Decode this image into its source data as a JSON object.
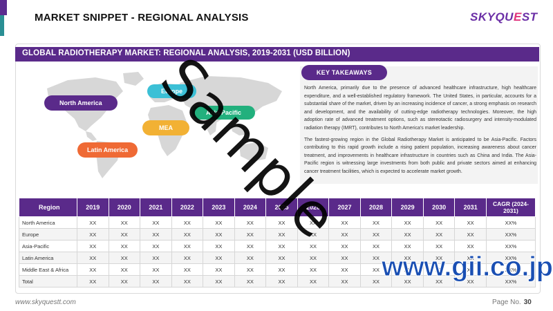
{
  "header": {
    "title": "MARKET SNIPPET - REGIONAL ANALYSIS",
    "logo_main": "SKYQU",
    "logo_accent": "E",
    "logo_end": "ST"
  },
  "section": {
    "banner": "GLOBAL RADIOTHERAPY MARKET: REGIONAL ANALYSIS, 2019-2031 (USD BILLION)"
  },
  "map": {
    "regions": [
      {
        "label": "North America",
        "color": "#5a2a8a"
      },
      {
        "label": "Europe",
        "color": "#3cc0d6"
      },
      {
        "label": "Asia-Pacific",
        "color": "#22b07d"
      },
      {
        "label": "MEA",
        "color": "#f2b134"
      },
      {
        "label": "Latin America",
        "color": "#ef6a35"
      }
    ]
  },
  "takeaways": {
    "title": "KEY TAKEAWAYS",
    "para1": "North America, primarily due to the presence of advanced healthcare infrastructure, high healthcare expenditure, and a well-established regulatory framework. The United States, in particular, accounts for a substantial share of the market, driven by an increasing incidence of cancer, a strong emphasis on research and development, and the availability of cutting-edge radiotherapy technologies. Moreover, the high adoption rate of advanced treatment options, such as stereotactic radiosurgery and intensity-modulated radiation therapy (IMRT), contributes to North America's market leadership.",
    "para2": "The fastest-growing region in the Global Radiotherapy Market is anticipated to be Asia-Pacific. Factors contributing to this rapid growth include a rising patient population, increasing awareness about cancer treatment, and improvements in healthcare infrastructure in countries such as China and India. The Asia-Pacific region is witnessing large investments from both public and private sectors aimed at enhancing cancer treatment facilities, which is expected to accelerate market growth."
  },
  "table": {
    "headers": [
      "Region",
      "2019",
      "2020",
      "2021",
      "2022",
      "2023",
      "2024",
      "2025",
      "2026",
      "2027",
      "2028",
      "2029",
      "2030",
      "2031",
      "CAGR (2024-2031)"
    ],
    "rows": [
      {
        "region": "North America",
        "values": [
          "XX",
          "XX",
          "XX",
          "XX",
          "XX",
          "XX",
          "XX",
          "XX",
          "XX",
          "XX",
          "XX",
          "XX",
          "XX"
        ],
        "cagr": "XX%"
      },
      {
        "region": "Europe",
        "values": [
          "XX",
          "XX",
          "XX",
          "XX",
          "XX",
          "XX",
          "XX",
          "XX",
          "XX",
          "XX",
          "XX",
          "XX",
          "XX"
        ],
        "cagr": "XX%"
      },
      {
        "region": "Asia-Pacific",
        "values": [
          "XX",
          "XX",
          "XX",
          "XX",
          "XX",
          "XX",
          "XX",
          "XX",
          "XX",
          "XX",
          "XX",
          "XX",
          "XX"
        ],
        "cagr": "XX%"
      },
      {
        "region": "Latin America",
        "values": [
          "XX",
          "XX",
          "XX",
          "XX",
          "XX",
          "XX",
          "XX",
          "XX",
          "XX",
          "XX",
          "XX",
          "XX",
          "XX"
        ],
        "cagr": "XX%"
      },
      {
        "region": "Middle East & Africa",
        "values": [
          "XX",
          "XX",
          "XX",
          "XX",
          "XX",
          "XX",
          "XX",
          "XX",
          "XX",
          "XX",
          "XX",
          "XX",
          "XX"
        ],
        "cagr": "XX%"
      },
      {
        "region": "Total",
        "values": [
          "XX",
          "XX",
          "XX",
          "XX",
          "XX",
          "XX",
          "XX",
          "XX",
          "XX",
          "XX",
          "XX",
          "XX",
          "XX"
        ],
        "cagr": "XX%"
      }
    ]
  },
  "footer": {
    "url": "www.skyquestt.com",
    "page_label": "Page No.",
    "page_number": "30"
  },
  "watermarks": {
    "sample": "Sample",
    "gii": "www.gii.co.jp"
  }
}
